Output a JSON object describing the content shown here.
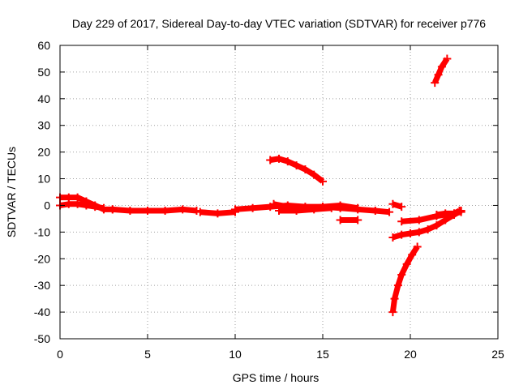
{
  "chart_data": {
    "type": "scatter",
    "title": "Day 229 of 2017, Sidereal Day-to-day VTEC variation (SDTVAR) for receiver p776",
    "xlabel": "GPS time / hours",
    "ylabel": "SDTVAR / TECUs",
    "xlim": [
      0,
      25
    ],
    "ylim": [
      -50,
      60
    ],
    "xticks": [
      0,
      5,
      10,
      15,
      20,
      25
    ],
    "yticks": [
      -50,
      -40,
      -30,
      -20,
      -10,
      0,
      10,
      20,
      30,
      40,
      50,
      60
    ],
    "grid": true,
    "legend": "none",
    "color": "#ff0000",
    "marker": "plus",
    "series": [
      {
        "values": [
          [
            0.0,
            3.0
          ],
          [
            0.5,
            3.0
          ],
          [
            1.0,
            3.0
          ],
          [
            1.5,
            1.5
          ],
          [
            2.0,
            0.0
          ],
          [
            2.5,
            -1.5
          ],
          [
            3.0,
            -1.5
          ]
        ]
      },
      {
        "values": [
          [
            0.0,
            0.0
          ],
          [
            0.5,
            0.5
          ],
          [
            1.0,
            0.5
          ],
          [
            1.5,
            0.0
          ],
          [
            2.0,
            -0.5
          ],
          [
            2.5,
            -1.0
          ]
        ]
      },
      {
        "values": [
          [
            3.0,
            -1.5
          ],
          [
            4.0,
            -2.0
          ],
          [
            5.0,
            -2.0
          ],
          [
            6.0,
            -2.0
          ],
          [
            7.0,
            -1.5
          ],
          [
            7.8,
            -2.0
          ]
        ]
      },
      {
        "values": [
          [
            8.0,
            -2.5
          ],
          [
            9.0,
            -3.0
          ],
          [
            10.0,
            -2.5
          ]
        ]
      },
      {
        "values": [
          [
            10.0,
            -1.5
          ],
          [
            11.0,
            -1.0
          ],
          [
            12.0,
            -0.5
          ],
          [
            13.0,
            0.0
          ],
          [
            14.0,
            -0.5
          ],
          [
            15.0,
            -0.5
          ],
          [
            16.0,
            -1.0
          ],
          [
            17.0,
            -1.5
          ],
          [
            18.0,
            -2.0
          ],
          [
            18.8,
            -2.5
          ]
        ]
      },
      {
        "values": [
          [
            12.2,
            0.5
          ],
          [
            13.0,
            -0.5
          ],
          [
            14.0,
            -1.0
          ],
          [
            15.0,
            -0.5
          ],
          [
            16.0,
            0.0
          ],
          [
            17.0,
            -1.0
          ]
        ]
      },
      {
        "values": [
          [
            12.5,
            -2.0
          ],
          [
            13.5,
            -2.0
          ],
          [
            14.5,
            -1.5
          ],
          [
            15.5,
            -1.0
          ]
        ]
      },
      {
        "values": [
          [
            16.0,
            -5.5
          ],
          [
            17.0,
            -5.5
          ]
        ]
      },
      {
        "values": [
          [
            12.0,
            17.0
          ],
          [
            12.5,
            17.5
          ],
          [
            13.0,
            16.5
          ],
          [
            13.5,
            15.0
          ],
          [
            14.0,
            13.5
          ],
          [
            14.5,
            11.5
          ],
          [
            15.0,
            9.0
          ]
        ]
      },
      {
        "values": [
          [
            19.0,
            0.5
          ],
          [
            19.5,
            -0.5
          ]
        ]
      },
      {
        "values": [
          [
            19.5,
            -6.0
          ],
          [
            20.5,
            -5.5
          ],
          [
            21.5,
            -4.0
          ],
          [
            22.5,
            -3.0
          ],
          [
            22.8,
            -2.0
          ]
        ]
      },
      {
        "values": [
          [
            19.0,
            -12.0
          ],
          [
            19.5,
            -11.0
          ],
          [
            20.0,
            -10.5
          ],
          [
            20.5,
            -10.0
          ],
          [
            21.0,
            -9.0
          ],
          [
            21.5,
            -7.5
          ],
          [
            22.0,
            -5.5
          ],
          [
            22.5,
            -3.5
          ],
          [
            22.9,
            -2.0
          ]
        ]
      },
      {
        "values": [
          [
            21.5,
            -3.5
          ],
          [
            22.0,
            -3.0
          ],
          [
            22.5,
            -3.0
          ],
          [
            22.9,
            -2.5
          ]
        ]
      },
      {
        "values": [
          [
            19.0,
            -40.0
          ],
          [
            19.1,
            -35.0
          ],
          [
            19.3,
            -30.0
          ],
          [
            19.5,
            -26.0
          ],
          [
            19.8,
            -22.0
          ],
          [
            20.1,
            -18.5
          ],
          [
            20.4,
            -15.5
          ]
        ]
      },
      {
        "values": [
          [
            21.4,
            46.0
          ],
          [
            21.6,
            49.0
          ],
          [
            21.8,
            52.0
          ],
          [
            22.1,
            55.0
          ]
        ]
      }
    ]
  }
}
